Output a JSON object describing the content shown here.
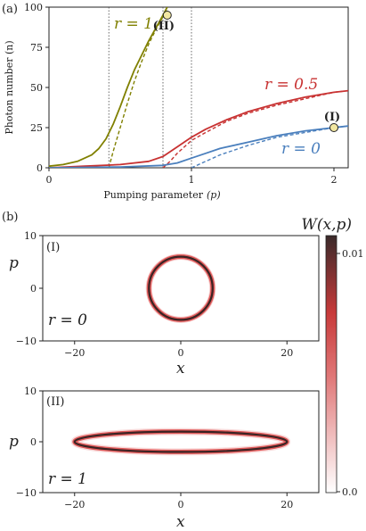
{
  "chart_data": [
    {
      "type": "line",
      "panel_label": "(a)",
      "xlabel_text": "Pumping parameter",
      "xlabel_sym": "(p)",
      "ylabel": "Photon number (n)",
      "xlim": [
        0,
        2.1
      ],
      "ylim": [
        0,
        100
      ],
      "x_ticks": [
        "0",
        "1",
        "2"
      ],
      "y_ticks": [
        "0",
        "25",
        "50",
        "75",
        "100"
      ],
      "grid": false,
      "vlines_x": [
        0.42,
        0.8,
        1.0
      ],
      "series": [
        {
          "name": "r = 1",
          "color": "#808000",
          "x": [
            0,
            0.1,
            0.2,
            0.3,
            0.35,
            0.4,
            0.45,
            0.5,
            0.55,
            0.6,
            0.65,
            0.7,
            0.75,
            0.8,
            0.83
          ],
          "y": [
            1,
            2,
            4,
            8,
            12,
            18,
            27,
            38,
            50,
            61,
            70,
            79,
            87,
            95,
            100
          ]
        },
        {
          "name": "r = 0.5",
          "color": "#c83232",
          "x": [
            0,
            0.25,
            0.5,
            0.7,
            0.8,
            0.9,
            1.0,
            1.1,
            1.25,
            1.4,
            1.6,
            1.8,
            2.0,
            2.1
          ],
          "y": [
            0,
            1,
            2,
            4,
            7,
            13,
            19,
            24,
            30,
            35,
            40,
            44,
            47,
            48
          ]
        },
        {
          "name": "r = 0",
          "color": "#4a7fbd",
          "x": [
            0,
            0.5,
            0.8,
            0.9,
            1.0,
            1.1,
            1.2,
            1.4,
            1.6,
            1.8,
            2.0,
            2.1
          ],
          "y": [
            0,
            0.5,
            1.5,
            3,
            6,
            9,
            12,
            16,
            20,
            23,
            25,
            26
          ]
        }
      ],
      "dashed_series": [
        {
          "color": "#808000",
          "x": [
            0.42,
            0.45,
            0.5,
            0.55,
            0.6,
            0.65,
            0.7,
            0.75,
            0.8,
            0.83
          ],
          "y": [
            0,
            10,
            25,
            40,
            54,
            66,
            77,
            86,
            94,
            98
          ]
        },
        {
          "color": "#c83232",
          "x": [
            0.8,
            0.85,
            0.9,
            0.95,
            1.0,
            1.1,
            1.25,
            1.4,
            1.6,
            1.8,
            2.0,
            2.1
          ],
          "y": [
            0,
            4,
            9,
            13,
            17,
            22,
            29,
            34,
            39,
            43,
            47,
            48
          ]
        },
        {
          "color": "#4a7fbd",
          "x": [
            1.0,
            1.1,
            1.2,
            1.3,
            1.4,
            1.6,
            1.8,
            2.0,
            2.1
          ],
          "y": [
            0,
            4,
            8,
            11,
            14,
            19,
            22,
            25,
            26
          ]
        }
      ],
      "markers": [
        {
          "label": "(I)",
          "x": 2.0,
          "y": 25
        },
        {
          "label": "(II)",
          "x": 0.83,
          "y": 95
        }
      ],
      "curve_labels": [
        "r = 1",
        "r = 0.5",
        "r = 0"
      ]
    },
    {
      "type": "heatmap",
      "panel_label": "(b)",
      "subplots": [
        {
          "label": "(I)",
          "r_text": "r = 0",
          "shape": "ring",
          "radius": 6,
          "xlim": [
            -26,
            26
          ],
          "ylim": [
            -10,
            10
          ],
          "x_ticks": [
            "−20",
            "0",
            "20"
          ],
          "y_ticks": [
            "10",
            "0",
            "−10"
          ],
          "xlabel": "x",
          "ylabel": "p"
        },
        {
          "label": "(II)",
          "r_text": "r = 1",
          "shape": "ellipse",
          "rx": 20,
          "ry": 2,
          "xlim": [
            -26,
            26
          ],
          "ylim": [
            -10,
            10
          ],
          "x_ticks": [
            "−20",
            "0",
            "20"
          ],
          "y_ticks": [
            "10",
            "0",
            "−10"
          ],
          "xlabel": "x",
          "ylabel": "p"
        }
      ],
      "colorbar": {
        "label": "W(x,p)",
        "ticks": [
          "0.01",
          "0.0"
        ],
        "range": [
          0,
          0.012
        ]
      }
    }
  ]
}
